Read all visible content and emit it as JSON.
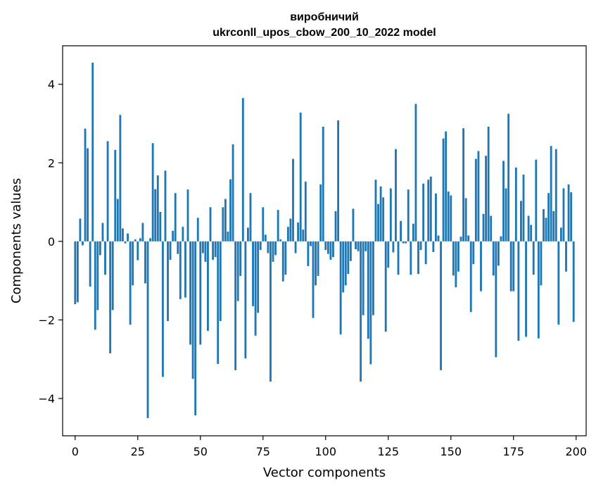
{
  "chart_data": {
    "type": "bar",
    "title_line1": "виробничий",
    "title_line2": "ukrconll_upos_cbow_200_10_2022 model",
    "xlabel": "Vector components",
    "ylabel": "Components values",
    "xlim": [
      -5,
      204
    ],
    "ylim": [
      -4.95,
      4.98
    ],
    "x_ticks": [
      0,
      25,
      50,
      75,
      100,
      125,
      150,
      175,
      200
    ],
    "y_ticks": [
      -4,
      -2,
      0,
      2,
      4
    ],
    "y_tick_labels": [
      "−4",
      "−2",
      "0",
      "2",
      "4"
    ],
    "bar_color": "#1f77b4",
    "grid": false,
    "values": [
      -1.6,
      -1.55,
      0.58,
      -0.1,
      2.87,
      2.37,
      -1.15,
      4.55,
      -2.25,
      -1.75,
      -0.35,
      0.47,
      -0.85,
      2.55,
      -2.85,
      -1.75,
      2.33,
      1.08,
      3.22,
      0.33,
      -0.05,
      0.2,
      -2.12,
      -1.12,
      0.05,
      -0.48,
      0.08,
      0.47,
      -1.07,
      -4.5,
      0.08,
      2.5,
      1.33,
      1.68,
      0.75,
      -3.45,
      1.8,
      -2.03,
      -0.47,
      0.27,
      1.23,
      -0.32,
      -1.47,
      0.37,
      -1.43,
      1.32,
      -2.63,
      -3.5,
      -4.43,
      0.6,
      -2.63,
      -0.3,
      -0.52,
      -2.28,
      0.87,
      -0.47,
      -0.4,
      -3.12,
      -2.03,
      0.87,
      1.08,
      0.25,
      1.58,
      2.47,
      -3.28,
      -1.52,
      -0.88,
      3.65,
      -2.98,
      0.35,
      1.23,
      -1.65,
      -2.4,
      -1.82,
      -0.22,
      0.87,
      0.17,
      -0.3,
      -3.57,
      -0.52,
      -0.35,
      0.8,
      0.05,
      -1.02,
      -0.85,
      0.37,
      0.58,
      2.1,
      -0.3,
      0.48,
      3.28,
      0.3,
      1.52,
      -0.63,
      -0.12,
      -1.95,
      -1.12,
      -0.88,
      1.45,
      2.92,
      -0.22,
      -0.32,
      -0.47,
      -0.4,
      0.77,
      3.08,
      -2.37,
      -1.3,
      -1.12,
      -0.83,
      -0.5,
      0.83,
      -0.2,
      -0.25,
      -3.57,
      -1.88,
      -0.25,
      -2.48,
      -3.13,
      -1.88,
      1.57,
      0.95,
      1.4,
      1.12,
      -2.3,
      -0.67,
      1.35,
      -0.28,
      2.35,
      -0.85,
      0.52,
      -0.05,
      -0.05,
      1.32,
      -0.85,
      0.45,
      3.5,
      -0.83,
      -0.22,
      1.47,
      -0.58,
      1.57,
      1.65,
      -0.27,
      1.22,
      0.15,
      -3.28,
      2.62,
      2.8,
      1.27,
      1.17,
      -0.87,
      -1.17,
      -0.77,
      0.12,
      2.88,
      1.1,
      0.15,
      -1.8,
      -0.58,
      2.1,
      2.3,
      -1.27,
      0.7,
      2.18,
      2.92,
      0.65,
      -0.87,
      -2.95,
      -0.62,
      0.13,
      2.05,
      1.35,
      3.25,
      -1.27,
      -1.27,
      1.88,
      -2.53,
      1.03,
      1.7,
      -2.43,
      0.65,
      0.42,
      -0.85,
      2.08,
      -2.47,
      -1.12,
      0.82,
      0.6,
      1.23,
      2.43,
      0.77,
      2.35,
      -2.12,
      0.35,
      1.35,
      -0.77,
      1.45,
      1.25,
      -2.05
    ]
  }
}
